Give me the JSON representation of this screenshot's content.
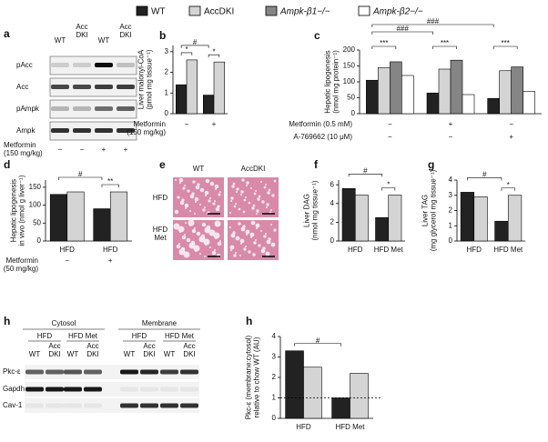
{
  "legend": [
    {
      "name": "WT",
      "color": "#222222"
    },
    {
      "name": "AccDKI",
      "color": "#d4d4d4"
    },
    {
      "name": "Ampk-β1−/−",
      "color": "#858585"
    },
    {
      "name": "Ampk-β2−/−",
      "color": "#ffffff"
    }
  ],
  "blot_a": {
    "letter": "a",
    "lanes": [
      [
        "WT"
      ],
      [
        "Acc",
        "DKI"
      ],
      [
        "WT"
      ],
      [
        "Acc",
        "DKI"
      ]
    ],
    "rows": [
      "pAcc",
      "Acc",
      "pAmpk",
      "Ampk"
    ],
    "treatment": {
      "label": [
        "Metformin",
        "(150 mg/kg)"
      ],
      "values": [
        "−",
        "−",
        "+",
        "+"
      ]
    }
  },
  "histology": {
    "letter": "e",
    "columns": [
      "WT",
      "AccDKI"
    ],
    "rows": [
      [
        "HFD"
      ],
      [
        "HFD",
        "Met"
      ]
    ]
  },
  "blot_h": {
    "letter": "h",
    "fractions": [
      {
        "label": "Cytosol",
        "groups": [
          "HFD",
          "HFD Met"
        ]
      },
      {
        "label": "Membrane",
        "groups": [
          "HFD",
          "HFD Met"
        ]
      }
    ],
    "lanes": [
      [
        "WT"
      ],
      [
        "Acc",
        "DKI"
      ],
      [
        "WT"
      ],
      [
        "Acc",
        "DKI"
      ],
      [
        "WT"
      ],
      [
        "Acc",
        "DKI"
      ],
      [
        "WT"
      ],
      [
        "Acc",
        "DKI"
      ]
    ],
    "rows": [
      "Pkc-ε",
      "Gapdh",
      "Cav-1"
    ]
  },
  "chart_data": [
    {
      "type": "bar",
      "letter": "b",
      "ylabel": [
        "Liver malonyl-CoA",
        "(pmol mg tissue⁻¹)"
      ],
      "categories": [
        null,
        null
      ],
      "series": [
        {
          "values": [
            1.4,
            0.9
          ]
        },
        {
          "values": [
            2.6,
            2.5
          ]
        }
      ],
      "ylim": [
        0,
        3.3
      ],
      "yticks": [
        0,
        1,
        2,
        3
      ],
      "treatments": [
        {
          "label": [
            "Metformin",
            "(150 mg/kg)"
          ],
          "values": [
            "−",
            "+"
          ]
        }
      ],
      "annotations": [
        "*",
        "#",
        "*"
      ]
    },
    {
      "type": "bar",
      "letter": "c",
      "ylabel": [
        "Hepatic lipogenesis",
        "(nmol mg protein⁻¹)"
      ],
      "categories": [
        null,
        null,
        null
      ],
      "series": [
        {
          "values": [
            105,
            65,
            48
          ]
        },
        {
          "values": [
            145,
            140,
            135
          ]
        },
        {
          "values": [
            163,
            168,
            147
          ]
        },
        {
          "values": [
            120,
            60,
            70
          ]
        }
      ],
      "ylim": [
        0,
        200
      ],
      "yticks": [
        0,
        50,
        100,
        150,
        200
      ],
      "treatments": [
        {
          "label": [
            "Metformin (0.5 mM)"
          ],
          "values": [
            "−",
            "+",
            "−"
          ]
        },
        {
          "label": [
            "A-769662 (10 μM)"
          ],
          "values": [
            "−",
            "−",
            "+"
          ]
        }
      ],
      "annotations": [
        "***",
        "###",
        "***",
        "###",
        "***"
      ]
    },
    {
      "type": "bar",
      "letter": "d",
      "ylabel": [
        "Hepatic lipogenesis",
        "in vivo (nmol g liver⁻¹)"
      ],
      "categories": [
        "HFD",
        "HFD"
      ],
      "series": [
        {
          "values": [
            130,
            90
          ]
        },
        {
          "values": [
            137,
            137
          ]
        }
      ],
      "ylim": [
        0,
        170
      ],
      "yticks": [
        0,
        50,
        100,
        150
      ],
      "treatments": [
        {
          "label": [
            "Metformin",
            "(50 mg/kg)"
          ],
          "values": [
            "−",
            "+"
          ]
        }
      ],
      "annotations": [
        "#",
        "**"
      ]
    },
    {
      "type": "bar",
      "letter": "f",
      "ylabel": [
        "Liver DAG",
        "(nmol mg tissue⁻¹)"
      ],
      "categories": [
        "HFD",
        "HFD Met"
      ],
      "series": [
        {
          "values": [
            5.6,
            2.5
          ]
        },
        {
          "values": [
            4.9,
            4.9
          ]
        }
      ],
      "ylim": [
        0,
        6.5
      ],
      "yticks": [
        0,
        2,
        4,
        6
      ],
      "treatments": [],
      "annotations": [
        "#",
        "*"
      ]
    },
    {
      "type": "bar",
      "letter": "g",
      "ylabel": [
        "Liver TAG",
        "(mg glycerol mg tissue⁻¹)"
      ],
      "categories": [
        "HFD",
        "HFD Met"
      ],
      "series": [
        {
          "values": [
            3.2,
            1.3
          ]
        },
        {
          "values": [
            2.9,
            3.0
          ]
        }
      ],
      "ylim": [
        0,
        4
      ],
      "yticks": [
        0,
        1,
        2,
        3,
        4
      ],
      "treatments": [],
      "annotations": [
        "#",
        "*"
      ]
    },
    {
      "type": "bar",
      "letter": "h",
      "ylabel": [
        "Pkc-ε (membrane:cytosol)",
        "relative to chow WT (AU)"
      ],
      "categories": [
        "HFD",
        "HFD Met"
      ],
      "series": [
        {
          "values": [
            3.3,
            1.0
          ]
        },
        {
          "values": [
            2.5,
            2.2
          ]
        }
      ],
      "ylim": [
        0,
        4
      ],
      "yticks": [
        0,
        1,
        2,
        3,
        4
      ],
      "reference_line": 1,
      "treatments": [],
      "annotations": [
        "#"
      ]
    }
  ]
}
